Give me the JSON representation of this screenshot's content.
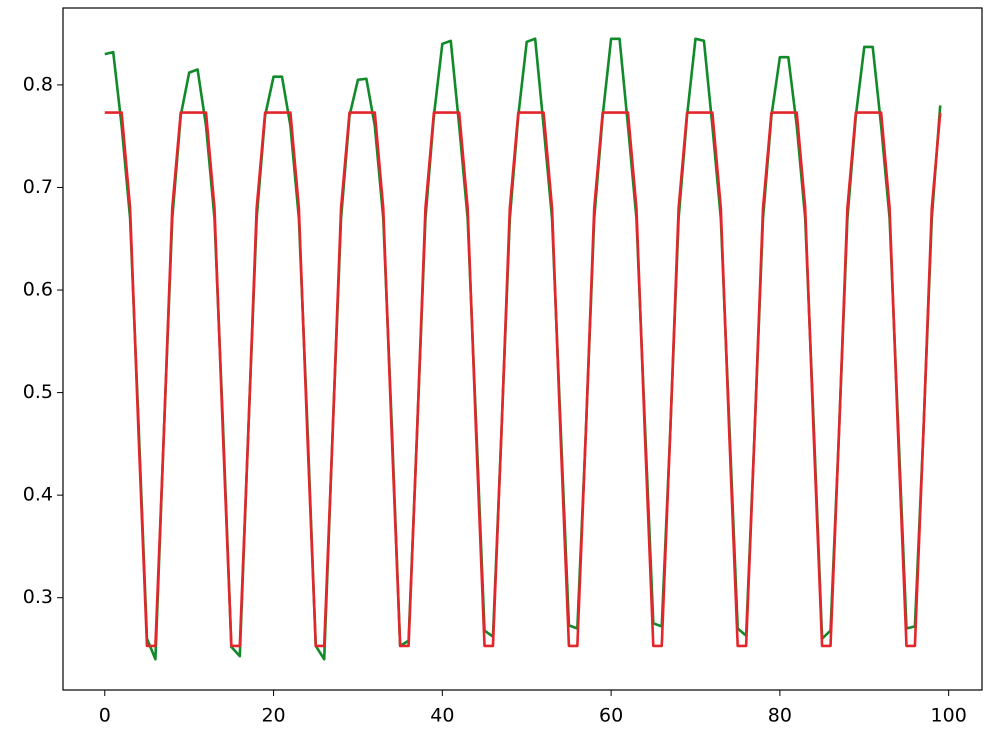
{
  "chart_data": {
    "type": "line",
    "x": [
      0,
      1,
      2,
      3,
      4,
      5,
      6,
      7,
      8,
      9,
      10,
      11,
      12,
      13,
      14,
      15,
      16,
      17,
      18,
      19,
      20,
      21,
      22,
      23,
      24,
      25,
      26,
      27,
      28,
      29,
      30,
      31,
      32,
      33,
      34,
      35,
      36,
      37,
      38,
      39,
      40,
      41,
      42,
      43,
      44,
      45,
      46,
      47,
      48,
      49,
      50,
      51,
      52,
      53,
      54,
      55,
      56,
      57,
      58,
      59,
      60,
      61,
      62,
      63,
      64,
      65,
      66,
      67,
      68,
      69,
      70,
      71,
      72,
      73,
      74,
      75,
      76,
      77,
      78,
      79,
      80,
      81,
      82,
      83,
      84,
      85,
      86,
      87,
      88,
      89,
      90,
      91,
      92,
      93,
      94,
      95,
      96,
      97,
      98,
      99
    ],
    "series": [
      {
        "color": "#118a2a",
        "values": [
          0.83,
          0.832,
          0.76,
          0.67,
          0.47,
          0.26,
          0.24,
          0.46,
          0.67,
          0.77,
          0.812,
          0.815,
          0.76,
          0.67,
          0.47,
          0.252,
          0.243,
          0.46,
          0.67,
          0.77,
          0.808,
          0.808,
          0.76,
          0.67,
          0.47,
          0.253,
          0.24,
          0.46,
          0.67,
          0.77,
          0.805,
          0.806,
          0.76,
          0.67,
          0.47,
          0.253,
          0.258,
          0.46,
          0.67,
          0.77,
          0.84,
          0.843,
          0.76,
          0.67,
          0.47,
          0.268,
          0.262,
          0.46,
          0.67,
          0.77,
          0.842,
          0.845,
          0.76,
          0.67,
          0.47,
          0.273,
          0.27,
          0.46,
          0.67,
          0.77,
          0.845,
          0.845,
          0.76,
          0.67,
          0.47,
          0.275,
          0.272,
          0.46,
          0.67,
          0.77,
          0.845,
          0.843,
          0.76,
          0.67,
          0.47,
          0.27,
          0.263,
          0.46,
          0.67,
          0.77,
          0.827,
          0.827,
          0.76,
          0.67,
          0.47,
          0.26,
          0.268,
          0.46,
          0.67,
          0.77,
          0.837,
          0.837,
          0.76,
          0.67,
          0.47,
          0.27,
          0.272,
          0.46,
          0.67,
          0.78
        ]
      },
      {
        "color": "#e3262c",
        "values": [
          0.773,
          0.773,
          0.773,
          0.68,
          0.46,
          0.253,
          0.253,
          0.46,
          0.68,
          0.773,
          0.773,
          0.773,
          0.773,
          0.68,
          0.46,
          0.253,
          0.253,
          0.46,
          0.68,
          0.773,
          0.773,
          0.773,
          0.773,
          0.68,
          0.46,
          0.253,
          0.253,
          0.46,
          0.68,
          0.773,
          0.773,
          0.773,
          0.773,
          0.68,
          0.46,
          0.253,
          0.253,
          0.46,
          0.68,
          0.773,
          0.773,
          0.773,
          0.773,
          0.68,
          0.46,
          0.253,
          0.253,
          0.46,
          0.68,
          0.773,
          0.773,
          0.773,
          0.773,
          0.68,
          0.46,
          0.253,
          0.253,
          0.46,
          0.68,
          0.773,
          0.773,
          0.773,
          0.773,
          0.68,
          0.46,
          0.253,
          0.253,
          0.46,
          0.68,
          0.773,
          0.773,
          0.773,
          0.773,
          0.68,
          0.46,
          0.253,
          0.253,
          0.46,
          0.68,
          0.773,
          0.773,
          0.773,
          0.773,
          0.68,
          0.46,
          0.253,
          0.253,
          0.46,
          0.68,
          0.773,
          0.773,
          0.773,
          0.773,
          0.68,
          0.46,
          0.253,
          0.253,
          0.46,
          0.68,
          0.773
        ]
      }
    ],
    "xlim": [
      -4.95,
      103.95
    ],
    "xticks": [
      0,
      20,
      40,
      60,
      80,
      100
    ],
    "ylim": [
      0.21,
      0.875
    ],
    "yticks": [
      0.3,
      0.4,
      0.5,
      0.6,
      0.7,
      0.8
    ]
  }
}
